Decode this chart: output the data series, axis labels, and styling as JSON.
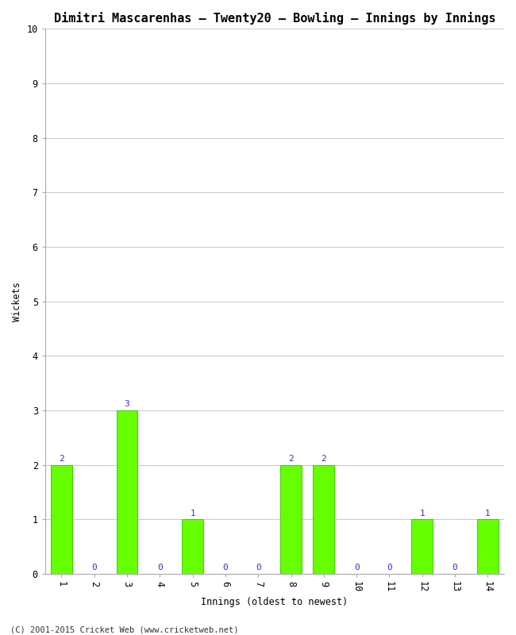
{
  "title": "Dimitri Mascarenhas – Twenty20 – Bowling – Innings by Innings",
  "xlabel": "Innings (oldest to newest)",
  "ylabel": "Wickets",
  "categories": [
    "1",
    "2",
    "3",
    "4",
    "5",
    "6",
    "7",
    "8",
    "9",
    "10",
    "11",
    "12",
    "13",
    "14"
  ],
  "values": [
    2,
    0,
    3,
    0,
    1,
    0,
    0,
    2,
    2,
    0,
    0,
    1,
    0,
    1
  ],
  "bar_color": "#66ff00",
  "bar_edge_color": "#44cc00",
  "label_color": "#3333cc",
  "ylim": [
    0,
    10
  ],
  "yticks": [
    0,
    1,
    2,
    3,
    4,
    5,
    6,
    7,
    8,
    9,
    10
  ],
  "background_color": "#ffffff",
  "plot_bg_color": "#ffffff",
  "grid_color": "#cccccc",
  "footer": "(C) 2001-2015 Cricket Web (www.cricketweb.net)",
  "title_fontsize": 11,
  "label_fontsize": 8.5,
  "tick_fontsize": 8.5,
  "bar_label_fontsize": 8,
  "footer_fontsize": 7.5
}
